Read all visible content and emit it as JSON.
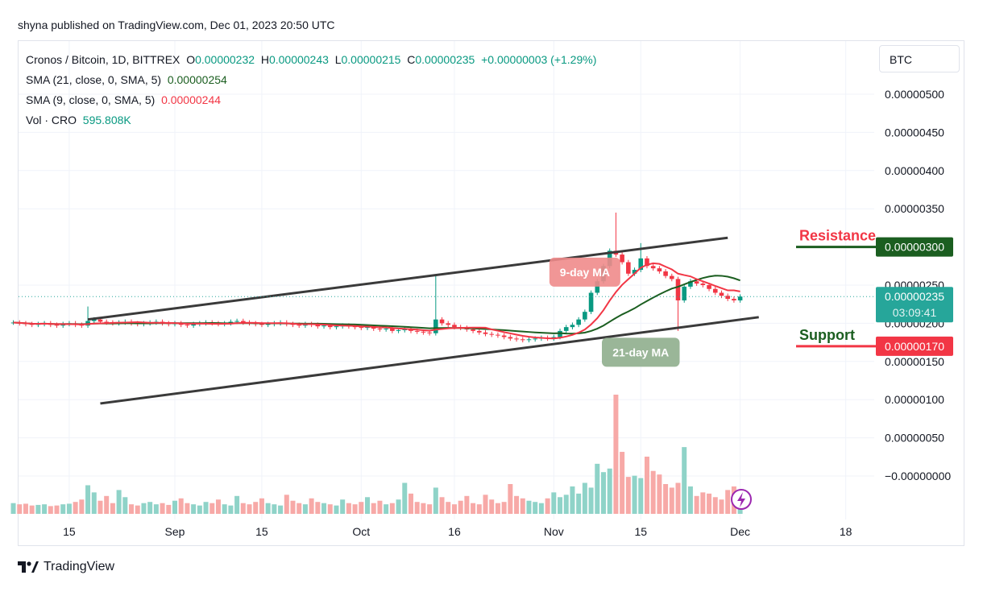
{
  "published": "shyna published on TradingView.com, Dec 01, 2023 20:50 UTC",
  "legend": {
    "symbol": "Cronos / Bitcoin, 1D, BITTREX",
    "o_label": "O",
    "o": "0.00000232",
    "h_label": "H",
    "h": "0.00000243",
    "l_label": "L",
    "l": "0.00000215",
    "c_label": "C",
    "c": "0.00000235",
    "change": "+0.00000003 (+1.29%)",
    "sma21_label": "SMA (21, close, 0, SMA, 5)",
    "sma21": "0.00000254",
    "sma9_label": "SMA (9, close, 0, SMA, 5)",
    "sma9": "0.00000244",
    "vol_label": "Vol · CRO",
    "vol": "595.808K"
  },
  "currency_button": "BTC",
  "footer_brand": "TradingView",
  "colors": {
    "up": "#089981",
    "down": "#f23645",
    "sma21": "#1b5e20",
    "sma9": "#f23645",
    "vol_up": "#8fd3c8",
    "vol_down": "#f7a9a7",
    "channel": "#3a3a3a",
    "last": "#26a69a"
  },
  "chart_data": {
    "type": "candlestick",
    "x_start": "2023-08-06",
    "x_ticks": [
      {
        "date": "2023-08-15",
        "label": "15"
      },
      {
        "date": "2023-09-01",
        "label": "Sep"
      },
      {
        "date": "2023-09-15",
        "label": "15"
      },
      {
        "date": "2023-10-01",
        "label": "Oct"
      },
      {
        "date": "2023-10-16",
        "label": "16"
      },
      {
        "date": "2023-11-01",
        "label": "Nov"
      },
      {
        "date": "2023-11-15",
        "label": "15"
      },
      {
        "date": "2023-12-01",
        "label": "Dec"
      },
      {
        "date": "2023-12-18",
        "label": "18"
      }
    ],
    "y_ticks": [
      "0.00000500",
      "0.00000450",
      "0.00000400",
      "0.00000350",
      "0.00000250",
      "0.00000200",
      "0.00000150",
      "0.00000100",
      "0.00000050",
      "−0.00000000"
    ],
    "y_tick_values": [
      5e-06,
      4.5e-06,
      4e-06,
      3.5e-06,
      2.5e-06,
      2e-06,
      1.5e-06,
      1e-06,
      5e-07,
      0
    ],
    "close": [
      2.01e-06,
      2e-06,
      1.99e-06,
      1.98e-06,
      1.99e-06,
      2e-06,
      1.98e-06,
      1.97e-06,
      1.99e-06,
      2e-06,
      1.98e-06,
      1.97e-06,
      2.03e-06,
      2.05e-06,
      2.02e-06,
      2.01e-06,
      2e-06,
      2.01e-06,
      2.02e-06,
      2e-06,
      1.99e-06,
      2e-06,
      2.01e-06,
      2.02e-06,
      2e-06,
      1.99e-06,
      2e-06,
      1.98e-06,
      1.97e-06,
      1.99e-06,
      2e-06,
      2.01e-06,
      2e-06,
      1.99e-06,
      2e-06,
      2.02e-06,
      2.03e-06,
      2.01e-06,
      2e-06,
      1.99e-06,
      1.98e-06,
      1.99e-06,
      2e-06,
      2.01e-06,
      1.99e-06,
      1.98e-06,
      1.97e-06,
      1.99e-06,
      1.98e-06,
      1.96e-06,
      1.97e-06,
      1.95e-06,
      1.96e-06,
      1.97e-06,
      1.96e-06,
      1.95e-06,
      1.94e-06,
      1.95e-06,
      1.93e-06,
      1.92e-06,
      1.93e-06,
      1.9e-06,
      1.91e-06,
      1.92e-06,
      1.9e-06,
      1.89e-06,
      1.88e-06,
      1.87e-06,
      2.05e-06,
      2e-06,
      1.98e-06,
      1.95e-06,
      1.94e-06,
      1.92e-06,
      1.9e-06,
      1.88e-06,
      1.86e-06,
      1.85e-06,
      1.84e-06,
      1.82e-06,
      1.8e-06,
      1.79e-06,
      1.78e-06,
      1.79e-06,
      1.8e-06,
      1.81e-06,
      1.8e-06,
      1.82e-06,
      1.9e-06,
      1.95e-06,
      1.98e-06,
      2.05e-06,
      2.15e-06,
      2.4e-06,
      2.55e-06,
      2.75e-06,
      2.95e-06,
      2.9e-06,
      2.8e-06,
      2.65e-06,
      2.7e-06,
      2.85e-06,
      2.75e-06,
      2.72e-06,
      2.68e-06,
      2.62e-06,
      2.58e-06,
      2.3e-06,
      2.48e-06,
      2.55e-06,
      2.52e-06,
      2.5e-06,
      2.45e-06,
      2.4e-06,
      2.36e-06,
      2.32e-06,
      2.3e-06,
      2.35e-06
    ],
    "notable_wicks": [
      {
        "date": "2023-08-18",
        "high": 2.22e-06
      },
      {
        "date": "2023-10-13",
        "high": 2.62e-06
      },
      {
        "date": "2023-11-11",
        "high": 3.45e-06
      },
      {
        "date": "2023-11-15",
        "high": 3.05e-06
      },
      {
        "date": "2023-11-21",
        "low": 1.9e-06
      }
    ],
    "volume_k": [
      900,
      800,
      850,
      700,
      750,
      800,
      650,
      700,
      800,
      850,
      1000,
      1200,
      2400,
      1800,
      1100,
      1500,
      900,
      2000,
      1400,
      800,
      700,
      900,
      1000,
      800,
      900,
      750,
      1100,
      1300,
      900,
      800,
      700,
      1000,
      900,
      1200,
      800,
      700,
      1500,
      900,
      800,
      1000,
      1300,
      900,
      800,
      700,
      1600,
      1100,
      900,
      800,
      1300,
      1000,
      900,
      800,
      700,
      1200,
      900,
      800,
      1000,
      1400,
      900,
      1100,
      800,
      900,
      1200,
      2600,
      1700,
      1000,
      900,
      800,
      2200,
      1400,
      1000,
      800,
      1100,
      1500,
      900,
      800,
      1600,
      1200,
      900,
      1000,
      2500,
      1500,
      1300,
      1100,
      1000,
      900,
      1300,
      1800,
      1400,
      1600,
      2300,
      1700,
      2600,
      2200,
      4200,
      3500,
      3800,
      10000,
      5200,
      3100,
      3200,
      3000,
      4800,
      3600,
      3300,
      2500,
      2200,
      2600,
      5600,
      2300,
      1500,
      1800,
      1700,
      1400,
      1200,
      2000,
      2300,
      596
    ],
    "lines": [
      {
        "label": "upper-channel",
        "from": {
          "date": "2023-08-18",
          "price": 2.05e-06
        },
        "to": {
          "date": "2023-11-29",
          "price": 3.12e-06
        }
      },
      {
        "label": "lower-channel",
        "from": {
          "date": "2023-08-20",
          "price": 9.5e-07
        },
        "to": {
          "date": "2023-12-04",
          "price": 2.08e-06
        }
      }
    ],
    "levels": [
      {
        "label": "Resistance",
        "price_label": "0.00000300",
        "price": 3e-06,
        "color": "#1b5e20",
        "text_color": "#f23645"
      },
      {
        "label": "Support",
        "price_label": "0.00000170",
        "price": 1.7e-06,
        "color": "#f23645",
        "text_color": "#1b5e20"
      }
    ],
    "last_price": {
      "value": "0.00000235",
      "countdown": "03:09:41"
    },
    "annotations": [
      {
        "text": "9-day MA",
        "date": "2023-11-06",
        "price": 2.67e-06,
        "color": "#f08b8b"
      },
      {
        "text": "21-day MA",
        "date": "2023-11-15",
        "price": 1.62e-06,
        "color": "#8fae8d"
      }
    ]
  }
}
